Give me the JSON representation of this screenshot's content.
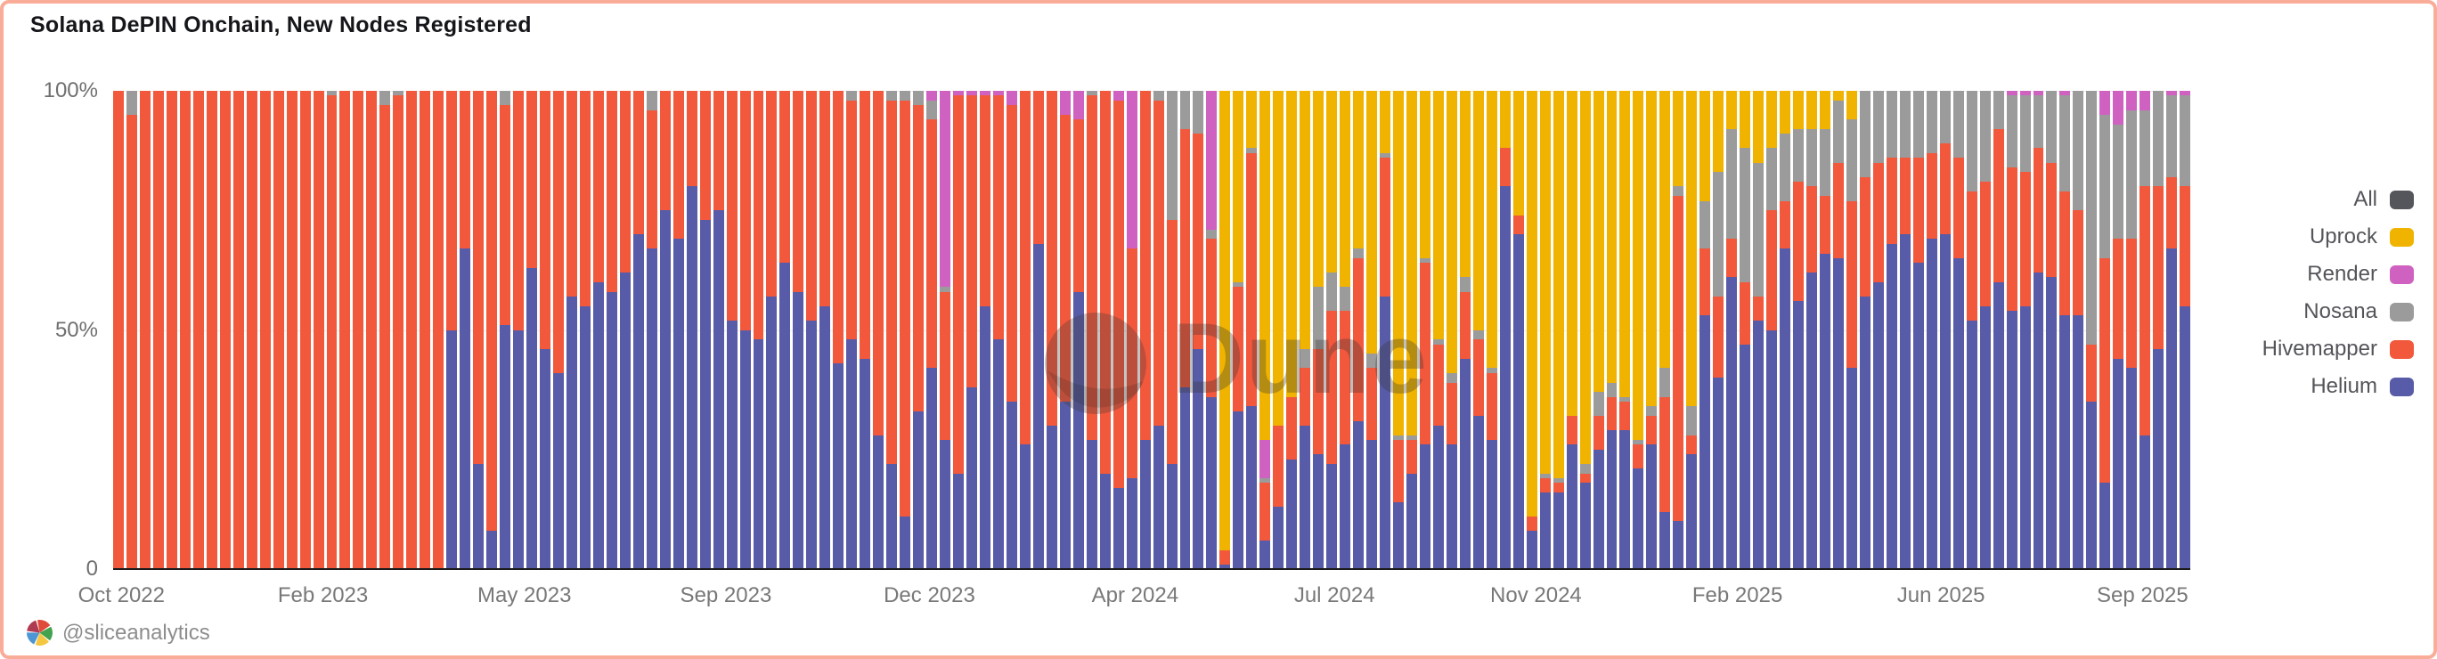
{
  "window": {
    "title": "Solana DePIN Onchain, New Nodes Registered"
  },
  "watermark": {
    "text": "Dune"
  },
  "footer": {
    "handle": "@sliceanalytics"
  },
  "colors": {
    "border": "#F9AC98",
    "title_text": "#15161A",
    "tick_text": "#6F6F6F",
    "legend_text": "#54555A",
    "axis_line": "#1B1B1B",
    "grid_line": "#EBEBEB",
    "footer_text": "#8D8D8D"
  },
  "chart_data": {
    "type": "bar",
    "stacked": true,
    "normalized_to": "100%",
    "title": "Solana DePIN Onchain, New Nodes Registered",
    "xlabel": "",
    "ylabel": "",
    "ylim": [
      0,
      100
    ],
    "grid": "horizontal",
    "legend_position": "right",
    "y_ticks": [
      "100%",
      "50%",
      "0"
    ],
    "x_ticks": [
      "Oct 2022",
      "Feb 2023",
      "May 2023",
      "Sep 2023",
      "Dec 2023",
      "Apr 2024",
      "Jul 2024",
      "Nov 2024",
      "Feb 2025",
      "Jun 2025",
      "Sep 2025"
    ],
    "x_tick_pct": [
      0.4,
      10.1,
      19.8,
      29.5,
      39.3,
      49.2,
      58.8,
      68.5,
      78.2,
      88.0,
      97.7
    ],
    "legend": [
      {
        "label": "All",
        "color": "#55565B"
      },
      {
        "label": "Uprock",
        "color": "#F0B400"
      },
      {
        "label": "Render",
        "color": "#CF62C0"
      },
      {
        "label": "Nosana",
        "color": "#9B9B9B"
      },
      {
        "label": "Hivemapper",
        "color": "#F2583C"
      },
      {
        "label": "Helium",
        "color": "#585BA7"
      }
    ],
    "series_order": [
      "Helium",
      "Hivemapper",
      "Nosana",
      "Render",
      "Uprock"
    ],
    "series_colors": [
      "#585BA7",
      "#F2583C",
      "#9B9B9B",
      "#CF62C0",
      "#F0B400"
    ],
    "bars": [
      [
        0,
        100,
        0,
        0,
        0
      ],
      [
        0,
        95,
        5,
        0,
        0
      ],
      [
        0,
        100,
        0,
        0,
        0
      ],
      [
        0,
        100,
        0,
        0,
        0
      ],
      [
        0,
        100,
        0,
        0,
        0
      ],
      [
        0,
        100,
        0,
        0,
        0
      ],
      [
        0,
        100,
        0,
        0,
        0
      ],
      [
        0,
        100,
        0,
        0,
        0
      ],
      [
        0,
        100,
        0,
        0,
        0
      ],
      [
        0,
        100,
        0,
        0,
        0
      ],
      [
        0,
        100,
        0,
        0,
        0
      ],
      [
        0,
        100,
        0,
        0,
        0
      ],
      [
        0,
        100,
        0,
        0,
        0
      ],
      [
        0,
        100,
        0,
        0,
        0
      ],
      [
        0,
        100,
        0,
        0,
        0
      ],
      [
        0,
        100,
        0,
        0,
        0
      ],
      [
        0,
        99,
        1,
        0,
        0
      ],
      [
        0,
        100,
        0,
        0,
        0
      ],
      [
        0,
        100,
        0,
        0,
        0
      ],
      [
        0,
        100,
        0,
        0,
        0
      ],
      [
        0,
        97,
        3,
        0,
        0
      ],
      [
        0,
        99,
        1,
        0,
        0
      ],
      [
        0,
        100,
        0,
        0,
        0
      ],
      [
        0,
        100,
        0,
        0,
        0
      ],
      [
        0,
        100,
        0,
        0,
        0
      ],
      [
        50,
        50,
        0,
        0,
        0
      ],
      [
        67,
        33,
        0,
        0,
        0
      ],
      [
        22,
        78,
        0,
        0,
        0
      ],
      [
        8,
        92,
        0,
        0,
        0
      ],
      [
        51,
        46,
        3,
        0,
        0
      ],
      [
        50,
        50,
        0,
        0,
        0
      ],
      [
        63,
        37,
        0,
        0,
        0
      ],
      [
        46,
        54,
        0,
        0,
        0
      ],
      [
        41,
        59,
        0,
        0,
        0
      ],
      [
        57,
        43,
        0,
        0,
        0
      ],
      [
        55,
        45,
        0,
        0,
        0
      ],
      [
        60,
        40,
        0,
        0,
        0
      ],
      [
        58,
        42,
        0,
        0,
        0
      ],
      [
        62,
        38,
        0,
        0,
        0
      ],
      [
        70,
        30,
        0,
        0,
        0
      ],
      [
        67,
        29,
        4,
        0,
        0
      ],
      [
        75,
        25,
        0,
        0,
        0
      ],
      [
        69,
        31,
        0,
        0,
        0
      ],
      [
        80,
        20,
        0,
        0,
        0
      ],
      [
        73,
        27,
        0,
        0,
        0
      ],
      [
        75,
        25,
        0,
        0,
        0
      ],
      [
        52,
        48,
        0,
        0,
        0
      ],
      [
        50,
        50,
        0,
        0,
        0
      ],
      [
        48,
        52,
        0,
        0,
        0
      ],
      [
        57,
        43,
        0,
        0,
        0
      ],
      [
        64,
        36,
        0,
        0,
        0
      ],
      [
        58,
        42,
        0,
        0,
        0
      ],
      [
        52,
        48,
        0,
        0,
        0
      ],
      [
        55,
        45,
        0,
        0,
        0
      ],
      [
        43,
        57,
        0,
        0,
        0
      ],
      [
        48,
        50,
        2,
        0,
        0
      ],
      [
        44,
        56,
        0,
        0,
        0
      ],
      [
        28,
        72,
        0,
        0,
        0
      ],
      [
        22,
        76,
        2,
        0,
        0
      ],
      [
        11,
        87,
        2,
        0,
        0
      ],
      [
        33,
        64,
        3,
        0,
        0
      ],
      [
        42,
        52,
        4,
        2,
        0
      ],
      [
        27,
        31,
        1,
        41,
        0
      ],
      [
        20,
        79,
        0,
        1,
        0
      ],
      [
        38,
        61,
        0,
        1,
        0
      ],
      [
        55,
        44,
        0,
        1,
        0
      ],
      [
        48,
        51,
        0,
        1,
        0
      ],
      [
        35,
        62,
        0,
        3,
        0
      ],
      [
        26,
        74,
        0,
        0,
        0
      ],
      [
        68,
        32,
        0,
        0,
        0
      ],
      [
        30,
        70,
        0,
        0,
        0
      ],
      [
        35,
        60,
        0,
        5,
        0
      ],
      [
        58,
        36,
        0,
        6,
        0
      ],
      [
        27,
        72,
        1,
        0,
        0
      ],
      [
        20,
        80,
        0,
        0,
        0
      ],
      [
        17,
        81,
        0,
        2,
        0
      ],
      [
        19,
        48,
        0,
        33,
        0
      ],
      [
        27,
        73,
        0,
        0,
        0
      ],
      [
        30,
        68,
        2,
        0,
        0
      ],
      [
        22,
        51,
        27,
        0,
        0
      ],
      [
        38,
        54,
        8,
        0,
        0
      ],
      [
        46,
        45,
        9,
        0,
        0
      ],
      [
        36,
        33,
        2,
        29,
        0
      ],
      [
        1,
        3,
        0,
        0,
        96
      ],
      [
        33,
        26,
        1,
        0,
        40
      ],
      [
        34,
        53,
        1,
        0,
        12
      ],
      [
        6,
        12,
        1,
        8,
        73
      ],
      [
        13,
        17,
        0,
        0,
        70
      ],
      [
        23,
        13,
        0,
        0,
        64
      ],
      [
        30,
        12,
        4,
        0,
        54
      ],
      [
        24,
        22,
        13,
        0,
        41
      ],
      [
        22,
        32,
        8,
        0,
        38
      ],
      [
        26,
        28,
        5,
        0,
        41
      ],
      [
        31,
        34,
        2,
        0,
        33
      ],
      [
        27,
        15,
        3,
        0,
        55
      ],
      [
        57,
        29,
        1,
        0,
        13
      ],
      [
        14,
        13,
        1,
        0,
        72
      ],
      [
        20,
        7,
        1,
        0,
        72
      ],
      [
        26,
        38,
        1,
        0,
        35
      ],
      [
        30,
        17,
        1,
        0,
        52
      ],
      [
        26,
        13,
        2,
        0,
        59
      ],
      [
        44,
        14,
        3,
        0,
        39
      ],
      [
        32,
        16,
        2,
        0,
        50
      ],
      [
        27,
        14,
        1,
        0,
        58
      ],
      [
        80,
        8,
        0,
        0,
        12
      ],
      [
        70,
        4,
        0,
        0,
        26
      ],
      [
        8,
        3,
        0,
        0,
        89
      ],
      [
        16,
        3,
        1,
        0,
        80
      ],
      [
        16,
        2,
        1,
        0,
        81
      ],
      [
        26,
        6,
        0,
        0,
        68
      ],
      [
        18,
        2,
        2,
        0,
        78
      ],
      [
        25,
        7,
        5,
        0,
        63
      ],
      [
        29,
        7,
        3,
        0,
        61
      ],
      [
        29,
        6,
        1,
        0,
        64
      ],
      [
        21,
        5,
        1,
        0,
        73
      ],
      [
        26,
        6,
        2,
        0,
        66
      ],
      [
        12,
        24,
        6,
        0,
        58
      ],
      [
        10,
        68,
        2,
        0,
        20
      ],
      [
        24,
        4,
        6,
        0,
        66
      ],
      [
        53,
        14,
        10,
        0,
        23
      ],
      [
        40,
        17,
        26,
        0,
        17
      ],
      [
        61,
        8,
        23,
        0,
        8
      ],
      [
        47,
        13,
        28,
        0,
        12
      ],
      [
        52,
        5,
        28,
        0,
        15
      ],
      [
        50,
        25,
        13,
        0,
        12
      ],
      [
        67,
        10,
        14,
        0,
        9
      ],
      [
        56,
        25,
        11,
        0,
        8
      ],
      [
        62,
        18,
        12,
        0,
        8
      ],
      [
        66,
        12,
        14,
        0,
        8
      ],
      [
        65,
        20,
        13,
        0,
        2
      ],
      [
        42,
        35,
        17,
        0,
        6
      ],
      [
        57,
        25,
        18,
        0,
        0
      ],
      [
        60,
        25,
        15,
        0,
        0
      ],
      [
        68,
        18,
        14,
        0,
        0
      ],
      [
        70,
        16,
        14,
        0,
        0
      ],
      [
        64,
        22,
        14,
        0,
        0
      ],
      [
        69,
        18,
        13,
        0,
        0
      ],
      [
        70,
        19,
        11,
        0,
        0
      ],
      [
        65,
        21,
        14,
        0,
        0
      ],
      [
        52,
        27,
        21,
        0,
        0
      ],
      [
        55,
        26,
        19,
        0,
        0
      ],
      [
        60,
        32,
        8,
        0,
        0
      ],
      [
        54,
        30,
        15,
        1,
        0
      ],
      [
        55,
        28,
        16,
        1,
        0
      ],
      [
        62,
        26,
        11,
        1,
        0
      ],
      [
        61,
        24,
        15,
        0,
        0
      ],
      [
        53,
        26,
        20,
        1,
        0
      ],
      [
        53,
        22,
        25,
        0,
        0
      ],
      [
        35,
        12,
        53,
        0,
        0
      ],
      [
        18,
        47,
        30,
        5,
        0
      ],
      [
        44,
        25,
        24,
        7,
        0
      ],
      [
        42,
        27,
        27,
        4,
        0
      ],
      [
        28,
        52,
        16,
        4,
        0
      ],
      [
        46,
        34,
        20,
        0,
        0
      ],
      [
        67,
        15,
        17,
        1,
        0
      ],
      [
        55,
        25,
        19,
        1,
        0
      ]
    ]
  }
}
